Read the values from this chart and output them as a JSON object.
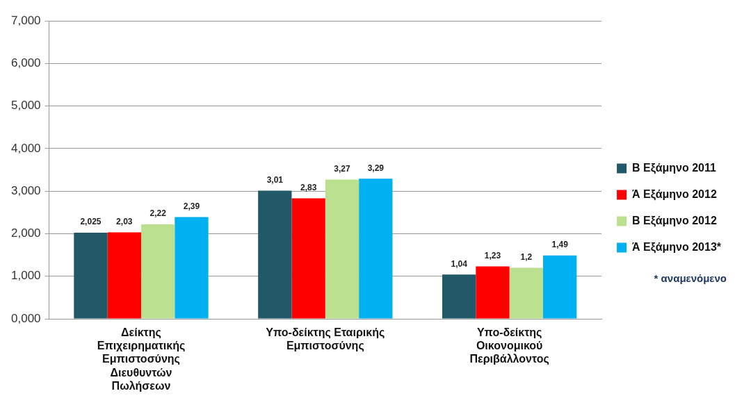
{
  "chart_data": {
    "type": "bar",
    "categories": [
      "Δείκτης Επιχειρηματικής Εμπιστοσύνης Διευθυντών Πωλήσεων",
      "Υπο-δείκτης Εταιρικής Εμπιστοσύνης",
      "Υπο-δείκτης Οικονομικού Περιβάλλοντος"
    ],
    "series": [
      {
        "name": "Β Εξάμηνο 2011",
        "color": "#215968",
        "values": [
          2.025,
          3.01,
          1.04
        ],
        "value_labels": [
          "2,025",
          "3,01",
          "1,04"
        ]
      },
      {
        "name": "Ά Εξάμηνο 2012",
        "color": "#ff0000",
        "values": [
          2.03,
          2.83,
          1.23
        ],
        "value_labels": [
          "2,03",
          "2,83",
          "1,23"
        ]
      },
      {
        "name": "Β Εξάμηνο 2012",
        "color": "#bbe08f",
        "values": [
          2.22,
          3.27,
          1.2
        ],
        "value_labels": [
          "2,22",
          "3,27",
          "1,2"
        ]
      },
      {
        "name": "Ά Εξάμηνο 2013*",
        "color": "#00b0f0",
        "values": [
          2.39,
          3.29,
          1.49
        ],
        "value_labels": [
          "2,39",
          "3,29",
          "1,49"
        ]
      }
    ],
    "ylim": [
      0,
      7
    ],
    "yticks": [
      {
        "value": 0,
        "label": "0,000"
      },
      {
        "value": 1,
        "label": "1,000"
      },
      {
        "value": 2,
        "label": "2,000"
      },
      {
        "value": 3,
        "label": "3,000"
      },
      {
        "value": 4,
        "label": "4,000"
      },
      {
        "value": 5,
        "label": "5,000"
      },
      {
        "value": 6,
        "label": "6,000"
      },
      {
        "value": 7,
        "label": "7,000"
      }
    ],
    "grid": "y",
    "legend": "right",
    "annotations": [
      "* αναμενόμενο"
    ]
  }
}
